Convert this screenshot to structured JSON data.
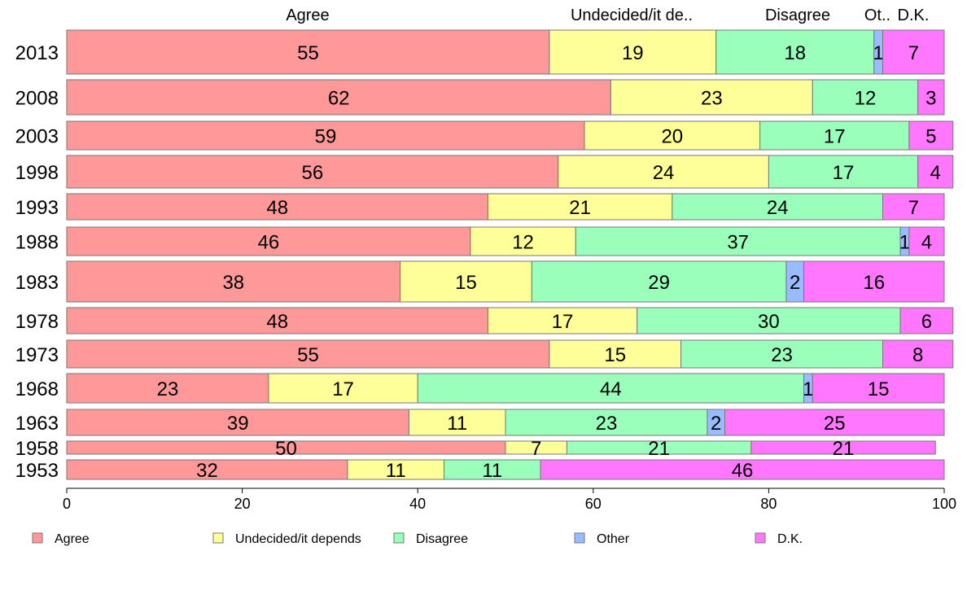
{
  "chart_data": {
    "type": "bar",
    "orientation": "horizontal",
    "stacked": true,
    "categories": [
      "2013",
      "2008",
      "2003",
      "1998",
      "1993",
      "1988",
      "1983",
      "1978",
      "1973",
      "1968",
      "1963",
      "1958",
      "1953"
    ],
    "series": [
      {
        "name": "Agree",
        "color": "#ff9999",
        "values": [
          55,
          62,
          59,
          56,
          48,
          46,
          38,
          48,
          55,
          23,
          39,
          50,
          32
        ]
      },
      {
        "name": "Undecided/it depends",
        "color": "#ffff99",
        "values": [
          19,
          23,
          20,
          24,
          21,
          12,
          15,
          17,
          15,
          17,
          11,
          7,
          11
        ]
      },
      {
        "name": "Disagree",
        "color": "#99ffbb",
        "values": [
          18,
          12,
          17,
          17,
          24,
          37,
          29,
          30,
          23,
          44,
          23,
          21,
          11
        ]
      },
      {
        "name": "Other",
        "color": "#99bbff",
        "values": [
          1,
          0,
          0,
          0,
          0,
          1,
          2,
          0,
          0,
          1,
          2,
          0,
          0
        ]
      },
      {
        "name": "D.K.",
        "color": "#ff77ff",
        "values": [
          7,
          3,
          5,
          4,
          7,
          4,
          16,
          6,
          8,
          15,
          25,
          21,
          46
        ]
      }
    ],
    "top_labels": [
      "Agree",
      "Undecided/it de..",
      "Disagree",
      "Ot..",
      "D.K."
    ],
    "xlim": [
      0,
      100
    ],
    "xticks": [
      0,
      20,
      40,
      60,
      80,
      100
    ],
    "title": "",
    "xlabel": "",
    "ylabel": "",
    "grid": false,
    "legend_position": "bottom"
  }
}
